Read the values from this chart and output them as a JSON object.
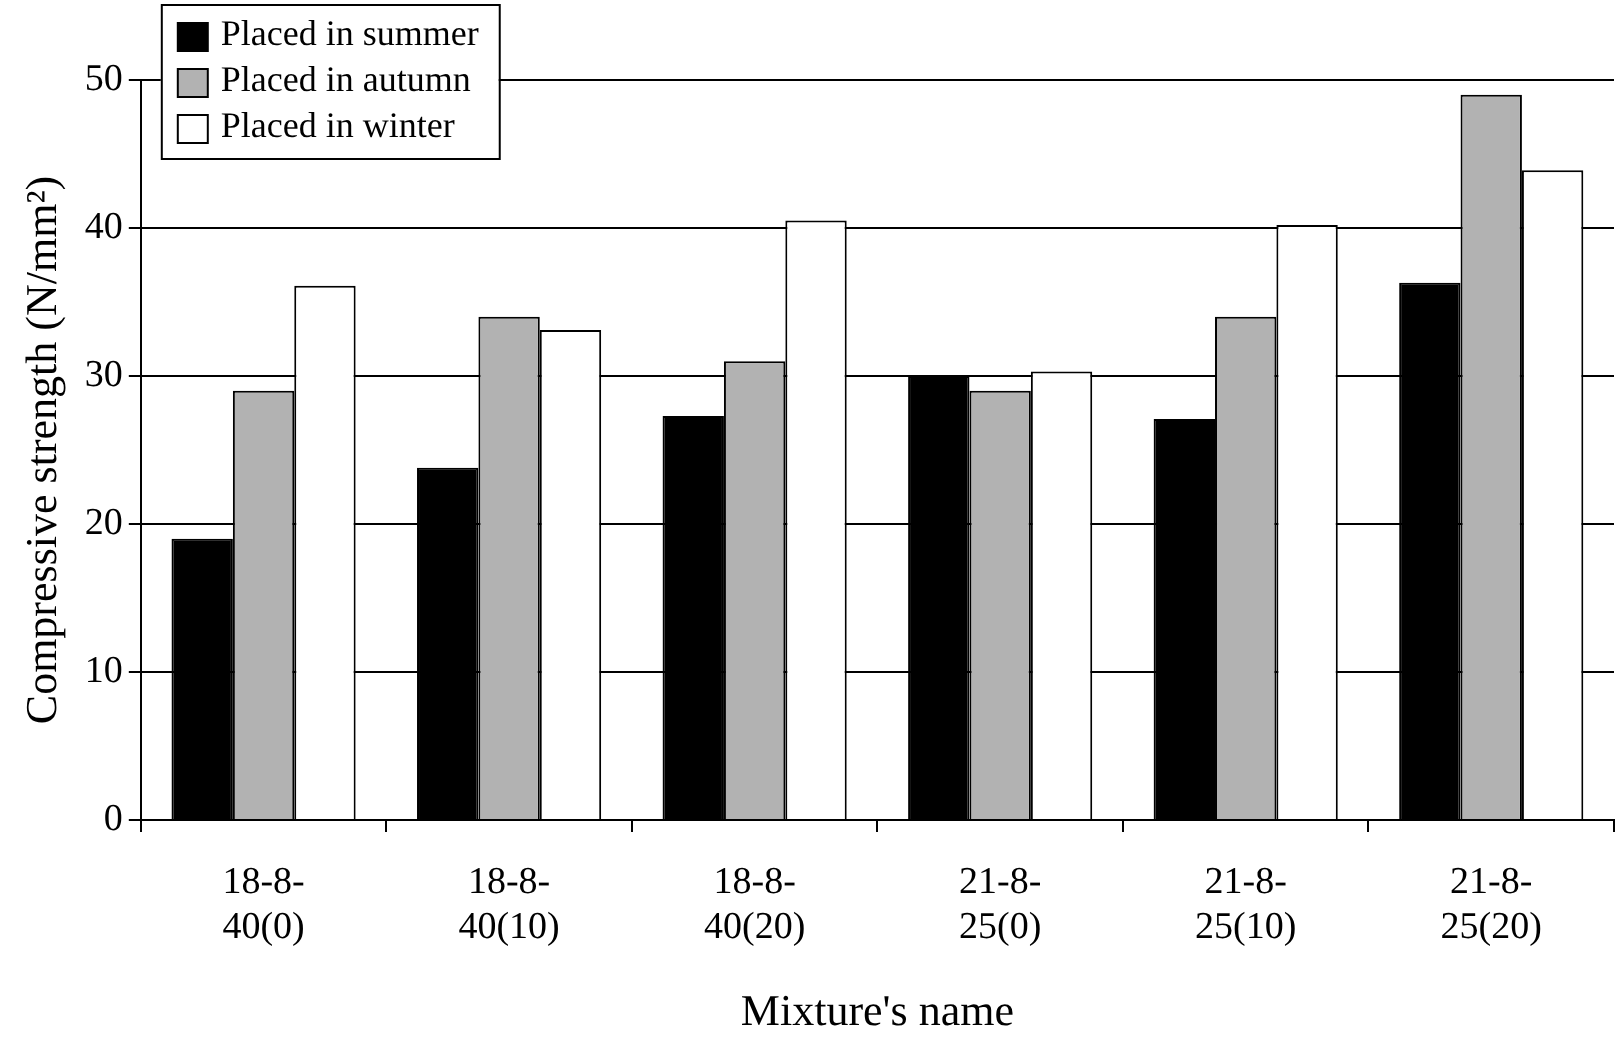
{
  "chart_data": {
    "type": "bar",
    "xlabel": "Mixture's name",
    "ylabel": "Compressive strength (N/mm²)",
    "categories": [
      "18-8-40(0)",
      "18-8-40(10)",
      "18-8-40(20)",
      "21-8-25(0)",
      "21-8-25(10)",
      "21-8-25(20)"
    ],
    "series": [
      {
        "name": "Placed in summer",
        "color": "#000000",
        "values": [
          19,
          23.8,
          27.3,
          30,
          27.1,
          36.3
        ]
      },
      {
        "name": "Placed in autumn",
        "color": "#b2b2b2",
        "values": [
          29,
          34,
          31,
          29,
          34,
          49
        ]
      },
      {
        "name": "Placed in winter",
        "color": "#ffffff",
        "values": [
          36.1,
          33.1,
          40.5,
          30.3,
          40.2,
          43.9
        ]
      }
    ],
    "ylim": [
      0,
      50
    ],
    "yticks": [
      0,
      10,
      20,
      30,
      40,
      50
    ],
    "grid": "y",
    "legend": "top left"
  }
}
